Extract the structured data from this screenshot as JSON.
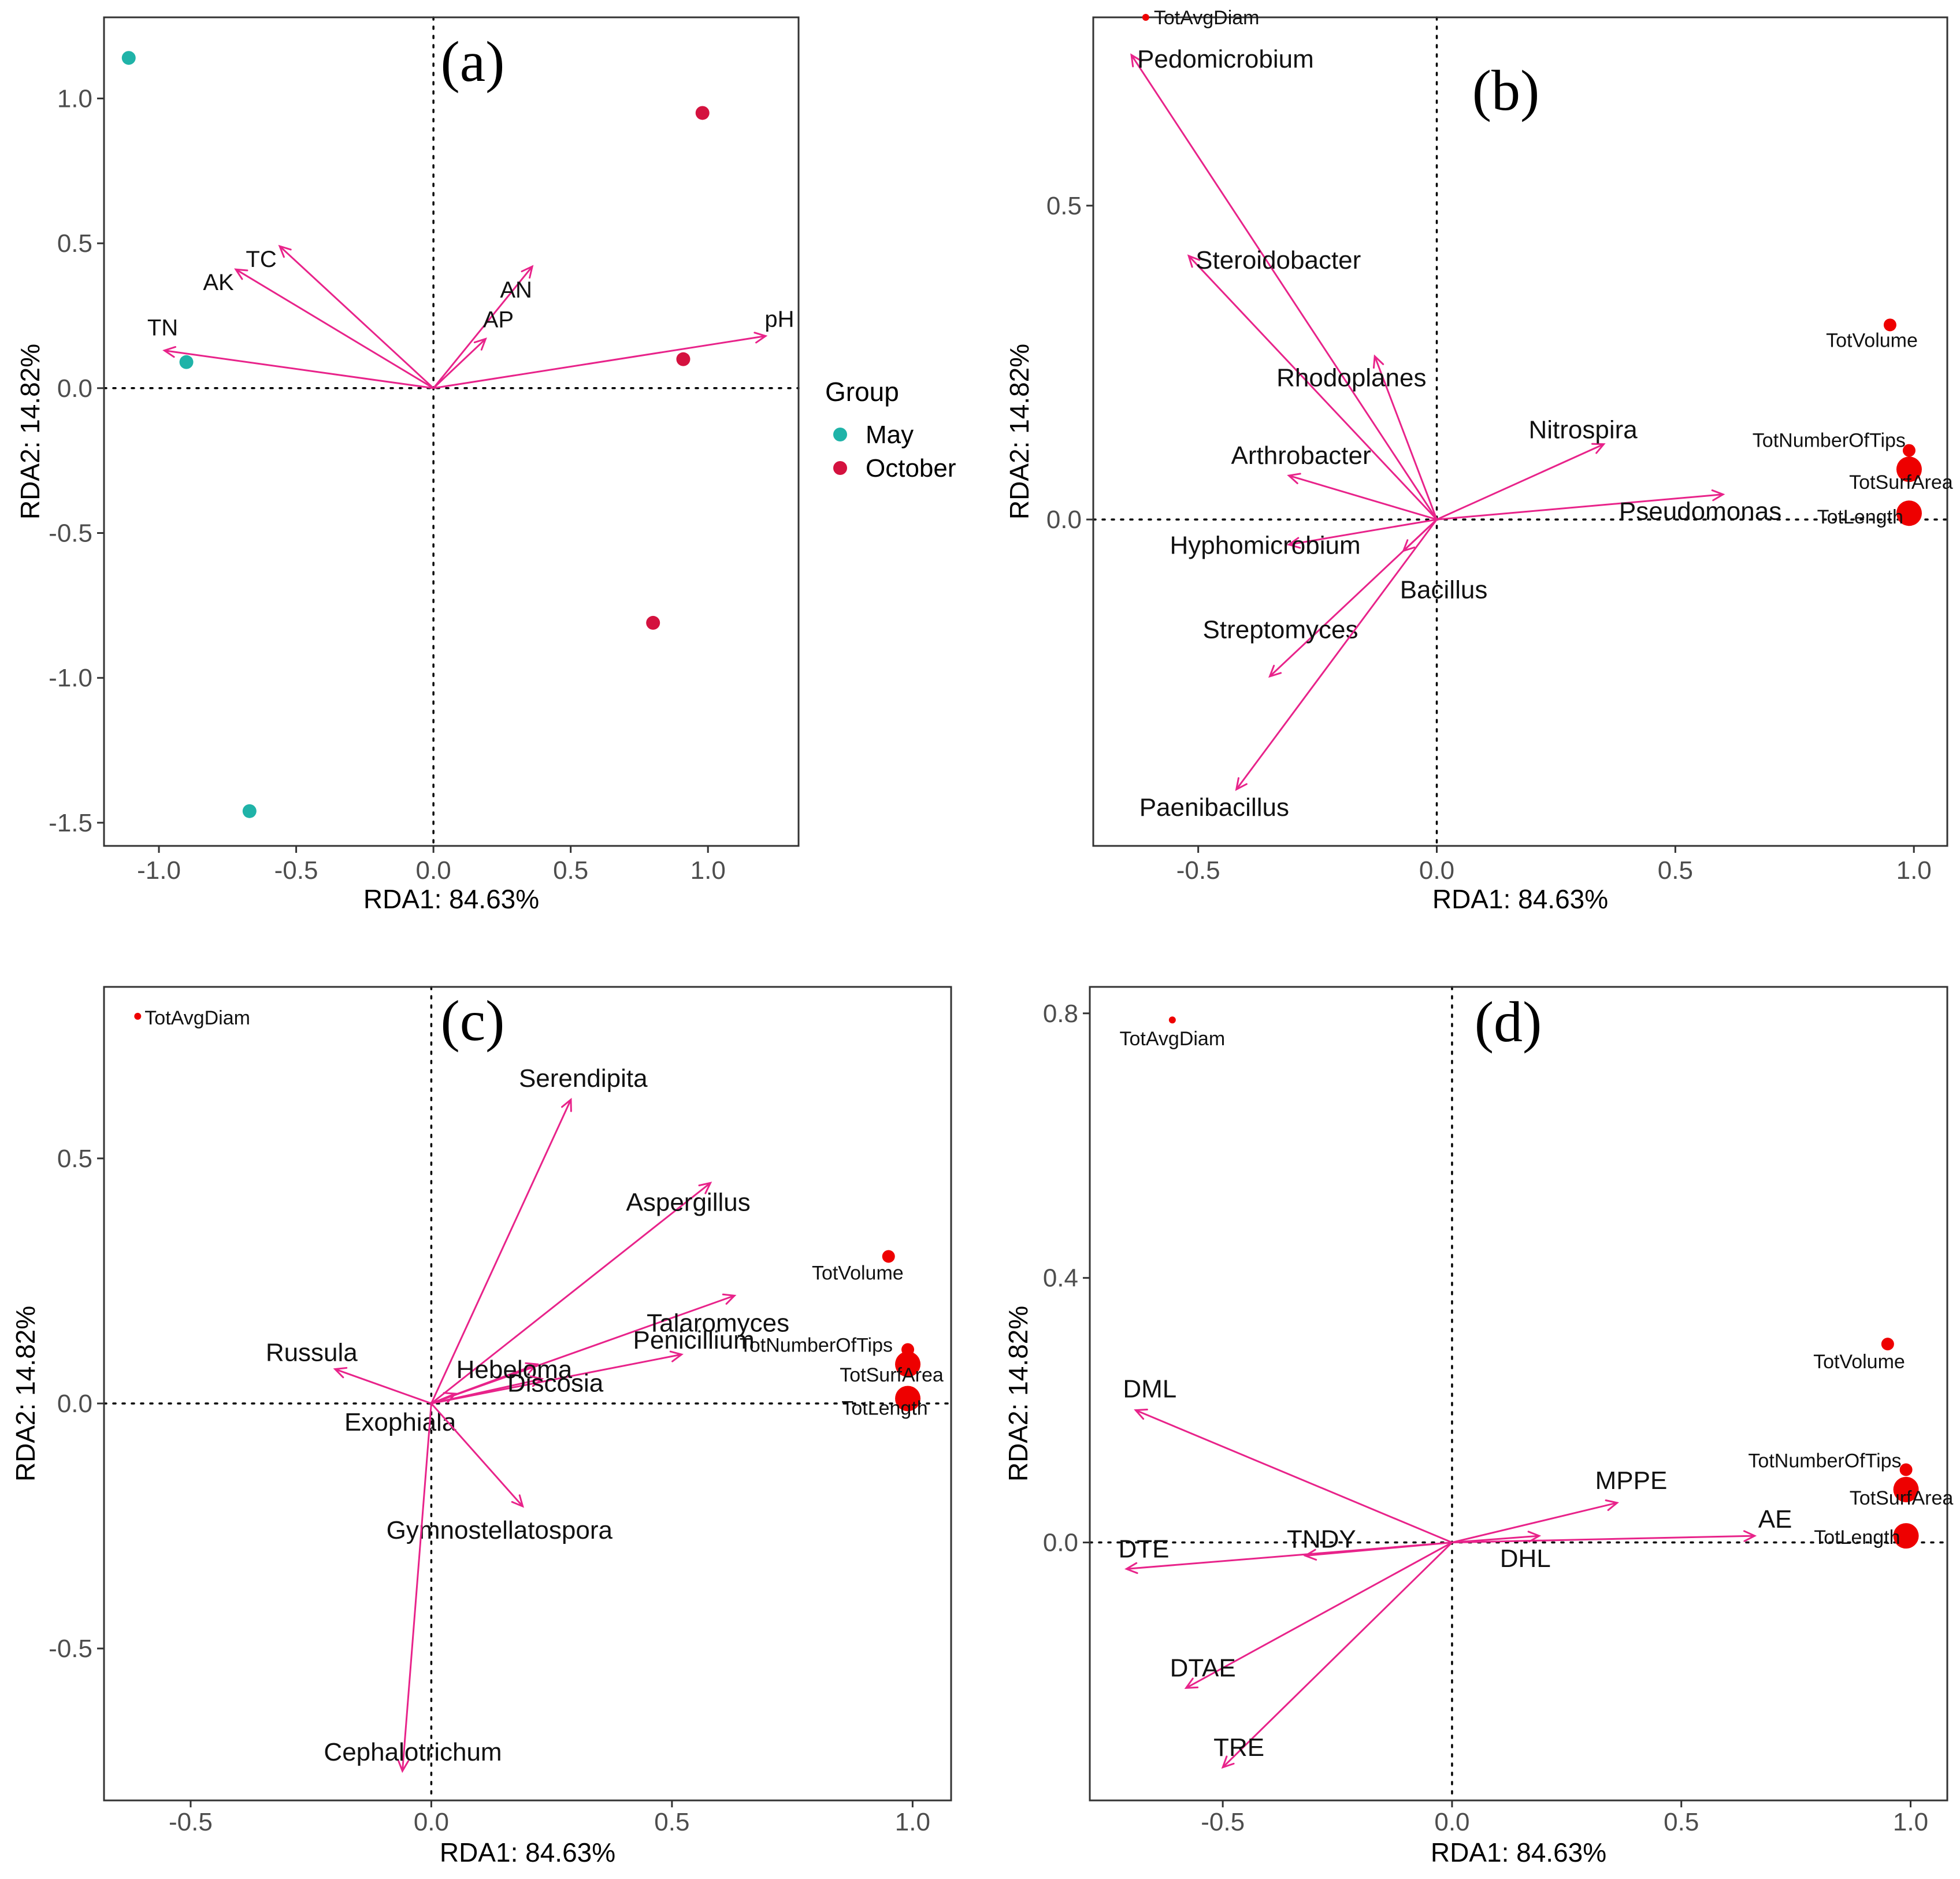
{
  "legend": {
    "title": "Group",
    "entries": [
      {
        "label": "May",
        "color": "#1fb3a8"
      },
      {
        "label": "October",
        "color": "#d4123f"
      }
    ]
  },
  "colors": {
    "arrow": "#e8238a",
    "site_point": "#ee0000"
  },
  "chart_data": [
    {
      "panel": "(a)",
      "type": "scatter",
      "xlabel": "RDA1: 84.63%",
      "ylabel": "RDA2: 14.82%",
      "xlim": [
        -1.2,
        1.33
      ],
      "ylim": [
        -1.58,
        1.28
      ],
      "xticks": [
        -1.0,
        -0.5,
        0.0,
        0.5,
        1.0
      ],
      "xtick_labels": [
        "-1.0",
        "-0.5",
        "0.0",
        "0.5",
        "1.0"
      ],
      "yticks": [
        -1.5,
        -1.0,
        -0.5,
        0.0,
        0.5,
        1.0
      ],
      "ytick_labels": [
        "-1.5",
        "-1.0",
        "-0.5",
        "0.0",
        "0.5",
        "1.0"
      ],
      "arrows": [
        {
          "label": "TN",
          "x": -0.98,
          "y": 0.13
        },
        {
          "label": "AK",
          "x": -0.72,
          "y": 0.41
        },
        {
          "label": "TC",
          "x": -0.56,
          "y": 0.49
        },
        {
          "label": "AN",
          "x": 0.36,
          "y": 0.42
        },
        {
          "label": "AP",
          "x": 0.19,
          "y": 0.17
        },
        {
          "label": "pH",
          "x": 1.21,
          "y": 0.18
        }
      ],
      "points": [
        {
          "group": "May",
          "x": -1.11,
          "y": 1.14
        },
        {
          "group": "May",
          "x": -0.9,
          "y": 0.09
        },
        {
          "group": "May",
          "x": -0.67,
          "y": -1.46
        },
        {
          "group": "October",
          "x": 0.98,
          "y": 0.95
        },
        {
          "group": "October",
          "x": 0.91,
          "y": 0.1
        },
        {
          "group": "October",
          "x": 0.8,
          "y": -0.81
        }
      ]
    },
    {
      "panel": "(b)",
      "type": "scatter",
      "xlabel": "RDA1: 84.63%",
      "ylabel": "RDA2: 14.82%",
      "xlim": [
        -0.72,
        1.07
      ],
      "ylim": [
        -0.52,
        0.8
      ],
      "xticks": [
        -0.5,
        0.0,
        0.5,
        1.0
      ],
      "xtick_labels": [
        "-0.5",
        "0.0",
        "0.5",
        "1.0"
      ],
      "yticks": [
        0.0,
        0.5
      ],
      "ytick_labels": [
        "0.0",
        "0.5"
      ],
      "arrows": [
        {
          "label": "Pedomicrobium",
          "x": -0.64,
          "y": 0.74
        },
        {
          "label": "Steroidobacter",
          "x": -0.52,
          "y": 0.42
        },
        {
          "label": "Rhodoplanes",
          "x": -0.13,
          "y": 0.26
        },
        {
          "label": "Arthrobacter",
          "x": -0.31,
          "y": 0.07
        },
        {
          "label": "Hyphomicrobium",
          "x": -0.31,
          "y": -0.04
        },
        {
          "label": "Bacillus",
          "x": -0.07,
          "y": -0.05
        },
        {
          "label": "Streptomyces",
          "x": -0.35,
          "y": -0.25
        },
        {
          "label": "Paenibacillus",
          "x": -0.42,
          "y": -0.43
        },
        {
          "label": "Nitrospira",
          "x": 0.35,
          "y": 0.12
        },
        {
          "label": "Pseudomonas",
          "x": 0.6,
          "y": 0.04
        }
      ],
      "points": [
        {
          "label": "TotAvgDiam",
          "x": -0.61,
          "y": 0.8,
          "size": "small"
        },
        {
          "label": "TotVolume",
          "x": 0.95,
          "y": 0.31,
          "size": "medium"
        },
        {
          "label": "TotNumberOfTips",
          "x": 0.99,
          "y": 0.11,
          "size": "medium"
        },
        {
          "label": "TotSurfArea",
          "x": 0.99,
          "y": 0.08,
          "size": "large"
        },
        {
          "label": "TotLength",
          "x": 0.99,
          "y": 0.01,
          "size": "large"
        }
      ]
    },
    {
      "panel": "(c)",
      "type": "scatter",
      "xlabel": "RDA1: 84.63%",
      "ylabel": "RDA2: 14.82%",
      "xlim": [
        -0.68,
        1.08
      ],
      "ylim": [
        -0.81,
        0.85
      ],
      "xticks": [
        -0.5,
        0.0,
        0.5,
        1.0
      ],
      "xtick_labels": [
        "-0.5",
        "0.0",
        "0.5",
        "1.0"
      ],
      "yticks": [
        -0.5,
        0.0,
        0.5
      ],
      "ytick_labels": [
        "-0.5",
        "0.0",
        "0.5"
      ],
      "arrows": [
        {
          "label": "Serendipita",
          "x": 0.29,
          "y": 0.62
        },
        {
          "label": "Aspergillus",
          "x": 0.58,
          "y": 0.45
        },
        {
          "label": "Talaromyces",
          "x": 0.63,
          "y": 0.22
        },
        {
          "label": "Penicillium",
          "x": 0.52,
          "y": 0.1
        },
        {
          "label": "Hebeloma",
          "x": 0.22,
          "y": 0.08
        },
        {
          "label": "Discosia",
          "x": 0.23,
          "y": 0.05
        },
        {
          "label": "Russula",
          "x": -0.2,
          "y": 0.07
        },
        {
          "label": "Exophiala",
          "x": 0.05,
          "y": 0.02
        },
        {
          "label": "Gymnostellatospora",
          "x": 0.19,
          "y": -0.21
        },
        {
          "label": "Cephalotrichum",
          "x": -0.06,
          "y": -0.75
        }
      ],
      "points": [
        {
          "label": "TotAvgDiam",
          "x": -0.61,
          "y": 0.79,
          "size": "small"
        },
        {
          "label": "TotVolume",
          "x": 0.95,
          "y": 0.3,
          "size": "medium"
        },
        {
          "label": "TotNumberOfTips",
          "x": 0.99,
          "y": 0.11,
          "size": "medium"
        },
        {
          "label": "TotSurfArea",
          "x": 0.99,
          "y": 0.08,
          "size": "large"
        },
        {
          "label": "TotLength",
          "x": 0.99,
          "y": 0.01,
          "size": "large"
        }
      ]
    },
    {
      "panel": "(d)",
      "type": "scatter",
      "xlabel": "RDA1: 84.63%",
      "ylabel": "RDA2: 14.82%",
      "xlim": [
        -0.79,
        1.08
      ],
      "ylim": [
        -0.39,
        0.84
      ],
      "xticks": [
        -0.5,
        0.0,
        0.5,
        1.0
      ],
      "xtick_labels": [
        "-0.5",
        "0.0",
        "0.5",
        "1.0"
      ],
      "yticks": [
        0.0,
        0.4,
        0.8
      ],
      "ytick_labels": [
        "0.0",
        "0.4",
        "0.8"
      ],
      "arrows": [
        {
          "label": "DML",
          "x": -0.69,
          "y": 0.2
        },
        {
          "label": "DTE",
          "x": -0.71,
          "y": -0.04
        },
        {
          "label": "TNDY",
          "x": -0.32,
          "y": -0.02
        },
        {
          "label": "DTAE",
          "x": -0.58,
          "y": -0.22
        },
        {
          "label": "TRE",
          "x": -0.5,
          "y": -0.34
        },
        {
          "label": "MPPE",
          "x": 0.36,
          "y": 0.06
        },
        {
          "label": "DHL",
          "x": 0.19,
          "y": 0.01
        },
        {
          "label": "AE",
          "x": 0.66,
          "y": 0.01
        }
      ],
      "points": [
        {
          "label": "TotAvgDiam",
          "x": -0.61,
          "y": 0.79,
          "size": "small"
        },
        {
          "label": "TotVolume",
          "x": 0.95,
          "y": 0.3,
          "size": "medium"
        },
        {
          "label": "TotNumberOfTips",
          "x": 0.99,
          "y": 0.11,
          "size": "medium"
        },
        {
          "label": "TotSurfArea",
          "x": 0.99,
          "y": 0.08,
          "size": "large"
        },
        {
          "label": "TotLength",
          "x": 0.99,
          "y": 0.01,
          "size": "large"
        }
      ]
    }
  ]
}
